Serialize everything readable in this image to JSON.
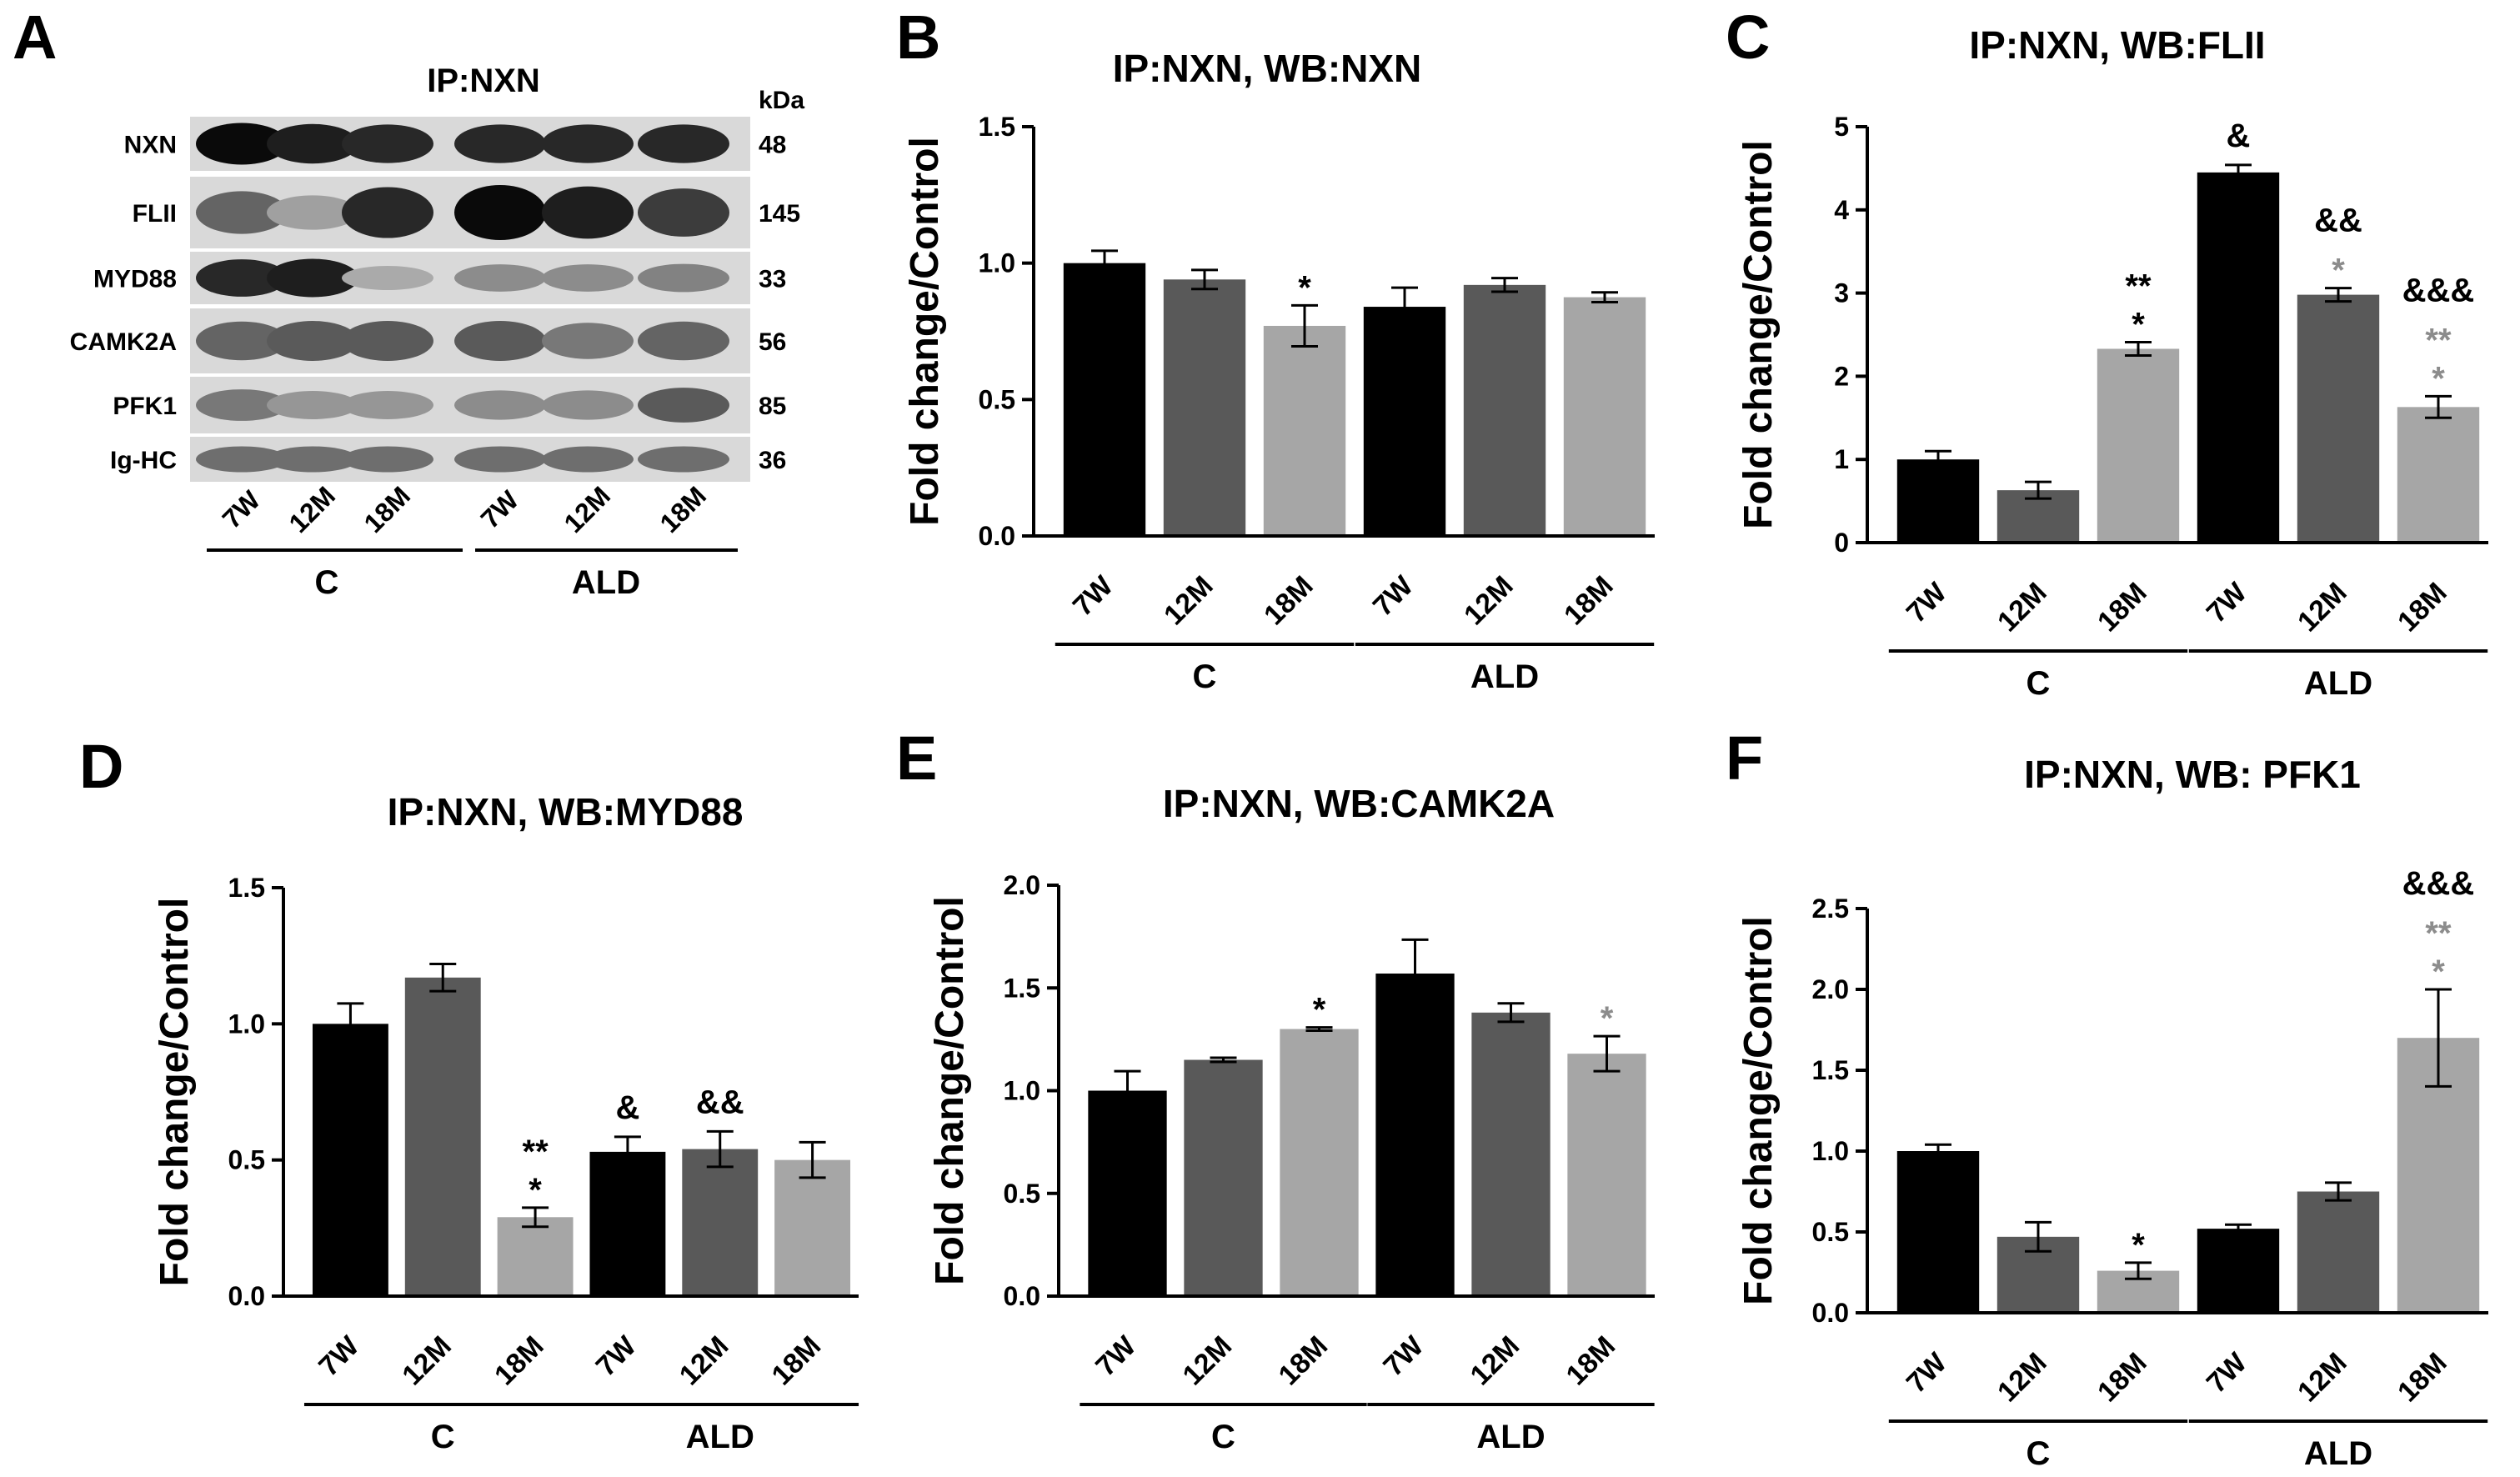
{
  "panel_a": {
    "letter": "A",
    "title": "IP:NXN",
    "kda_label": "kDa",
    "rows": [
      {
        "name": "NXN",
        "kda": "48"
      },
      {
        "name": "FLII",
        "kda": "145"
      },
      {
        "name": "MYD88",
        "kda": "33"
      },
      {
        "name": "CAMK2A",
        "kda": "56"
      },
      {
        "name": "PFK1",
        "kda": "85"
      },
      {
        "name": "Ig-HC",
        "kda": "36"
      }
    ],
    "lanes": [
      "7W",
      "12M",
      "18M",
      "7W",
      "12M",
      "18M"
    ],
    "groups": [
      "C",
      "ALD"
    ]
  },
  "chart_data": [
    {
      "panel": "B",
      "type": "bar",
      "title": "IP:NXN, WB:NXN",
      "ylabel": "Fold change/Control",
      "categories": [
        "7W",
        "12M",
        "18M",
        "7W",
        "12M",
        "18M"
      ],
      "groups": [
        "C",
        "ALD"
      ],
      "values": [
        1.0,
        0.94,
        0.77,
        0.84,
        0.92,
        0.875
      ],
      "errors": [
        0.045,
        0.035,
        0.075,
        0.07,
        0.025,
        0.018
      ],
      "ylim": [
        0,
        1.5
      ],
      "yticks": [
        "0.0",
        "0.5",
        "1.0",
        "1.5"
      ],
      "ytick_values": [
        0,
        0.5,
        1.0,
        1.5
      ],
      "colors": [
        "#000000",
        "#595959",
        "#a6a6a6",
        "#000000",
        "#595959",
        "#a6a6a6"
      ],
      "annotations": [
        {
          "bar": 2,
          "lines": [
            {
              "text": "*",
              "color": "#000000"
            }
          ]
        }
      ]
    },
    {
      "panel": "C",
      "type": "bar",
      "title": "IP:NXN, WB:FLII",
      "ylabel": "Fold change/Control",
      "categories": [
        "7W",
        "12M",
        "18M",
        "7W",
        "12M",
        "18M"
      ],
      "groups": [
        "C",
        "ALD"
      ],
      "values": [
        1.0,
        0.63,
        2.33,
        4.45,
        2.98,
        1.63
      ],
      "errors": [
        0.1,
        0.1,
        0.08,
        0.09,
        0.08,
        0.13
      ],
      "ylim": [
        0,
        5
      ],
      "yticks": [
        "0",
        "1",
        "2",
        "3",
        "4",
        "5"
      ],
      "ytick_values": [
        0,
        1,
        2,
        3,
        4,
        5
      ],
      "colors": [
        "#000000",
        "#595959",
        "#a6a6a6",
        "#000000",
        "#595959",
        "#a6a6a6"
      ],
      "annotations": [
        {
          "bar": 2,
          "lines": [
            {
              "text": "*",
              "color": "#000000"
            },
            {
              "text": "**",
              "color": "#000000"
            }
          ]
        },
        {
          "bar": 3,
          "lines": [
            {
              "text": "&",
              "color": "#000000"
            }
          ]
        },
        {
          "bar": 4,
          "lines": [
            {
              "text": "*",
              "color": "#8c8c8c"
            },
            {
              "text": "&&",
              "color": "#000000"
            }
          ]
        },
        {
          "bar": 5,
          "lines": [
            {
              "text": "*",
              "color": "#8c8c8c"
            },
            {
              "text": "**",
              "color": "#8c8c8c"
            },
            {
              "text": "&&&",
              "color": "#000000"
            }
          ]
        }
      ]
    },
    {
      "panel": "D",
      "type": "bar",
      "title": "IP:NXN, WB:MYD88",
      "ylabel": "Fold change/Control",
      "categories": [
        "7W",
        "12M",
        "18M",
        "7W",
        "12M",
        "18M"
      ],
      "groups": [
        "C",
        "ALD"
      ],
      "values": [
        1.0,
        1.17,
        0.29,
        0.53,
        0.54,
        0.5
      ],
      "errors": [
        0.075,
        0.05,
        0.035,
        0.055,
        0.065,
        0.065
      ],
      "ylim": [
        0,
        1.5
      ],
      "yticks": [
        "0.0",
        "0.5",
        "1.0",
        "1.5"
      ],
      "ytick_values": [
        0,
        0.5,
        1.0,
        1.5
      ],
      "colors": [
        "#000000",
        "#595959",
        "#a6a6a6",
        "#000000",
        "#595959",
        "#a6a6a6"
      ],
      "annotations": [
        {
          "bar": 2,
          "lines": [
            {
              "text": "*",
              "color": "#000000"
            },
            {
              "text": "**",
              "color": "#000000"
            }
          ]
        },
        {
          "bar": 3,
          "lines": [
            {
              "text": "&",
              "color": "#000000"
            }
          ]
        },
        {
          "bar": 4,
          "lines": [
            {
              "text": "&&",
              "color": "#000000"
            }
          ]
        }
      ]
    },
    {
      "panel": "E",
      "type": "bar",
      "title": "IP:NXN, WB:CAMK2A",
      "ylabel": "Fold change/Control",
      "categories": [
        "7W",
        "12M",
        "18M",
        "7W",
        "12M",
        "18M"
      ],
      "groups": [
        "C",
        "ALD"
      ],
      "values": [
        1.0,
        1.15,
        1.3,
        1.57,
        1.38,
        1.18
      ],
      "errors": [
        0.095,
        0.01,
        0.008,
        0.165,
        0.045,
        0.085
      ],
      "ylim": [
        0,
        2.0
      ],
      "yticks": [
        "0.0",
        "0.5",
        "1.0",
        "1.5",
        "2.0"
      ],
      "ytick_values": [
        0,
        0.5,
        1.0,
        1.5,
        2.0
      ],
      "colors": [
        "#000000",
        "#595959",
        "#a6a6a6",
        "#000000",
        "#595959",
        "#a6a6a6"
      ],
      "annotations": [
        {
          "bar": 2,
          "lines": [
            {
              "text": "*",
              "color": "#000000"
            }
          ]
        },
        {
          "bar": 5,
          "lines": [
            {
              "text": "*",
              "color": "#8c8c8c"
            }
          ]
        }
      ]
    },
    {
      "panel": "F",
      "type": "bar",
      "title": "IP:NXN, WB: PFK1",
      "ylabel": "Fold change/Control",
      "categories": [
        "7W",
        "12M",
        "18M",
        "7W",
        "12M",
        "18M"
      ],
      "groups": [
        "C",
        "ALD"
      ],
      "values": [
        1.0,
        0.47,
        0.26,
        0.52,
        0.75,
        1.7
      ],
      "errors": [
        0.04,
        0.09,
        0.05,
        0.025,
        0.055,
        0.3
      ],
      "ylim": [
        0,
        2.5
      ],
      "yticks": [
        "0.0",
        "0.5",
        "1.0",
        "1.5",
        "2.0",
        "2.5"
      ],
      "ytick_values": [
        0,
        0.5,
        1.0,
        1.5,
        2.0,
        2.5
      ],
      "colors": [
        "#000000",
        "#595959",
        "#a6a6a6",
        "#000000",
        "#595959",
        "#a6a6a6"
      ],
      "annotations": [
        {
          "bar": 2,
          "lines": [
            {
              "text": "*",
              "color": "#000000"
            }
          ]
        },
        {
          "bar": 5,
          "lines": [
            {
              "text": "*",
              "color": "#8c8c8c"
            },
            {
              "text": "**",
              "color": "#8c8c8c"
            },
            {
              "text": "&&&",
              "color": "#000000"
            }
          ]
        }
      ]
    }
  ]
}
